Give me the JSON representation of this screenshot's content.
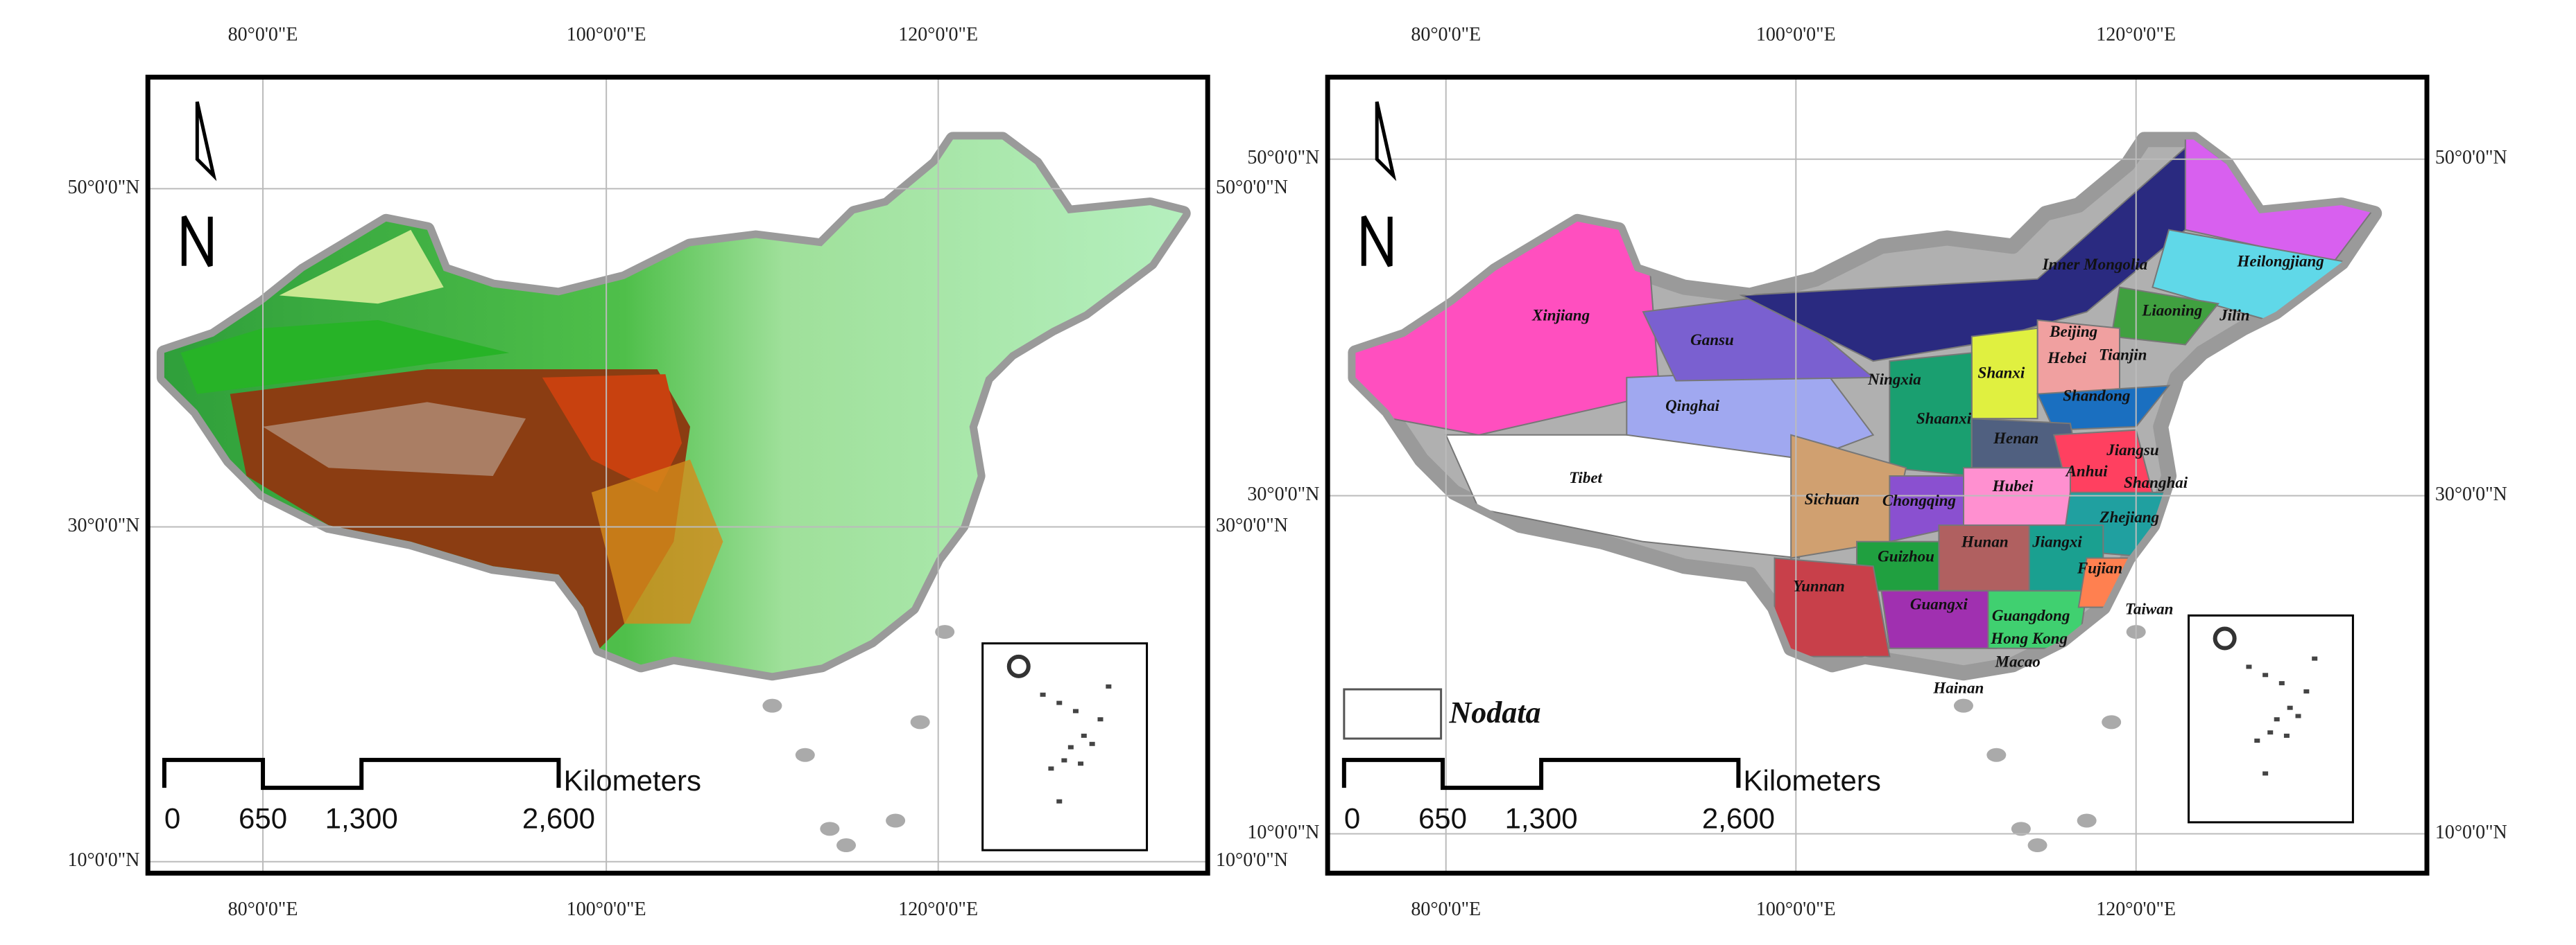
{
  "lon_labels": [
    "80°0'0\"E",
    "100°0'0\"E",
    "120°0'0\"E"
  ],
  "lat_labels": [
    "50°0'0\"N",
    "30°0'0\"N",
    "10°0'0\"N"
  ],
  "panels": [
    {
      "scale_bar": {
        "unit": "Kilometers",
        "labels": [
          "0",
          "650",
          "1,300",
          "2,600"
        ]
      }
    },
    {
      "scale_bar": {
        "unit": "Kilometers",
        "labels": [
          "0",
          "650",
          "1,300",
          "2,600"
        ]
      },
      "legend": "Nodata",
      "provinces": [
        "Heilongjiang",
        "Jilin",
        "Liaoning",
        "Inner Mongolia",
        "Xinjiang",
        "Gansu",
        "Beijing",
        "Hebei",
        "Tianjin",
        "Ningxia",
        "Shanxi",
        "Shandong",
        "Qinghai",
        "Shaanxi",
        "Henan",
        "Jiangsu",
        "Tibet",
        "Anhui",
        "Shanghai",
        "Hubei",
        "Sichuan",
        "Chongqing",
        "Zhejiang",
        "Hunan",
        "Jiangxi",
        "Guizhou",
        "Fujian",
        "Yunnan",
        "Guangxi",
        "Guangdong",
        "Taiwan",
        "Hong Kong",
        "Macao",
        "Hainan"
      ]
    }
  ]
}
